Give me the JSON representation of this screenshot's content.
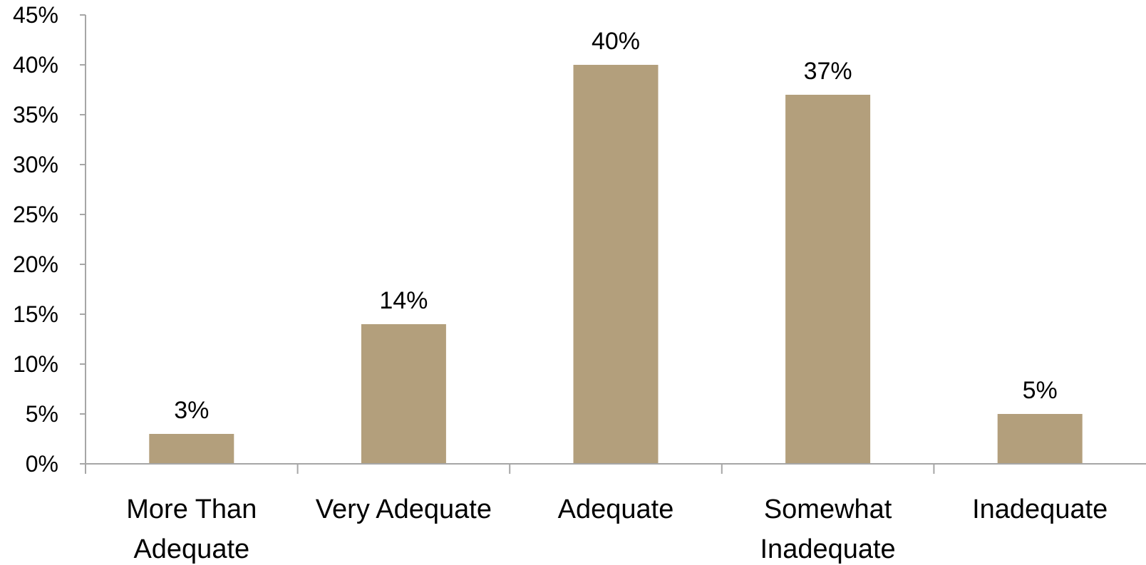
{
  "chart_data": {
    "type": "bar",
    "categories": [
      [
        "More Than",
        "Adequate"
      ],
      [
        "Very Adequate"
      ],
      [
        "Adequate"
      ],
      [
        "Somewhat",
        "Inadequate"
      ],
      [
        "Inadequate"
      ]
    ],
    "values": [
      3,
      14,
      40,
      37,
      5
    ],
    "data_labels": [
      "3%",
      "14%",
      "40%",
      "37%",
      "5%"
    ],
    "y_ticks": [
      0,
      5,
      10,
      15,
      20,
      25,
      30,
      35,
      40,
      45
    ],
    "y_tick_labels": [
      "0%",
      "5%",
      "10%",
      "15%",
      "20%",
      "25%",
      "30%",
      "35%",
      "40%",
      "45%"
    ],
    "ylim": [
      0,
      45
    ],
    "grid": false,
    "legend": "none",
    "bar_color": "#b39f7c",
    "axis_color": "#a6a6a6"
  }
}
